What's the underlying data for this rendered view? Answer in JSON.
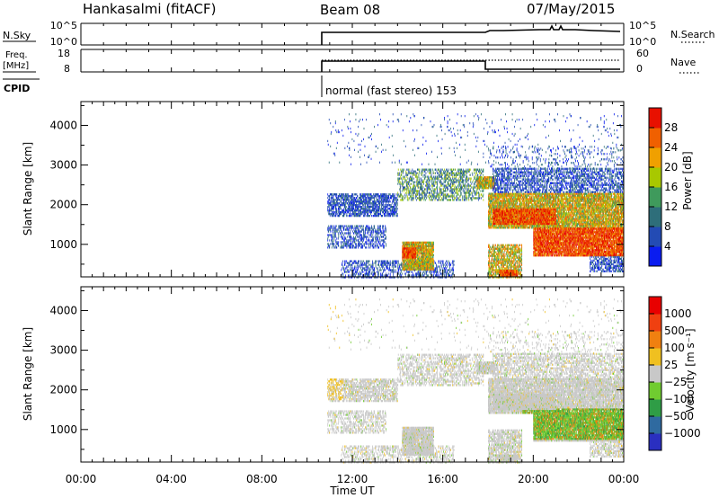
{
  "header": {
    "station": "Hankasalmi (fitACF)",
    "beam": "Beam 08",
    "date": "07/May/2015"
  },
  "status_panels": {
    "nsky": {
      "label": "N.Sky",
      "yticks": [
        "10^5",
        "10^0"
      ]
    },
    "nsearch": {
      "label": "N.Search",
      "yticks": [
        "10^5",
        "10^0"
      ]
    },
    "freq": {
      "label_line1": "Freq.",
      "label_line2": "[MHz]",
      "yticks": [
        "18",
        "8"
      ]
    },
    "nave": {
      "label": "Nave",
      "yticks": [
        "60",
        "0"
      ]
    },
    "cpid": {
      "label": "CPID",
      "text": "normal (fast stereo) 153"
    }
  },
  "chart_data": [
    {
      "type": "heatmap",
      "name": "power",
      "ylabel": "Slant Range [km]",
      "yticks": [
        "1000",
        "2000",
        "3000",
        "4000"
      ],
      "xlim": [
        0,
        24
      ],
      "ylim": [
        180,
        4600
      ],
      "colorbar": {
        "label": "Power [dB]",
        "ticks": [
          "4",
          "8",
          "12",
          "16",
          "20",
          "24",
          "28"
        ],
        "colors": [
          "#0a1cf0",
          "#234bb4",
          "#2e6e7a",
          "#3f9a5c",
          "#a8c800",
          "#f0a000",
          "#f06000",
          "#e81000"
        ]
      }
    },
    {
      "type": "heatmap",
      "name": "velocity",
      "ylabel": "Slant Range [km]",
      "yticks": [
        "1000",
        "2000",
        "3000",
        "4000"
      ],
      "xlim": [
        0,
        24
      ],
      "ylim": [
        180,
        4600
      ],
      "xlabel": "Time UT",
      "xticks": [
        "00:00",
        "04:00",
        "08:00",
        "12:00",
        "16:00",
        "20:00",
        "00:00"
      ],
      "colorbar": {
        "label": "Velocity [m s⁻¹]",
        "ticks": [
          "1000",
          "500",
          "100",
          "25",
          "−25",
          "−100",
          "−500",
          "−1000"
        ],
        "colors": [
          "#2a2fc0",
          "#2f6aa0",
          "#2f9d46",
          "#70cc30",
          "#c8c8c8",
          "#f0c020",
          "#f08010",
          "#f04010",
          "#e80000"
        ]
      }
    }
  ]
}
